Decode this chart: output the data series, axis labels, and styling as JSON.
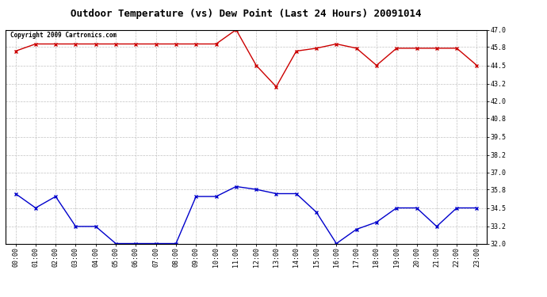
{
  "title": "Outdoor Temperature (vs) Dew Point (Last 24 Hours) 20091014",
  "copyright_text": "Copyright 2009 Cartronics.com",
  "x_labels": [
    "00:00",
    "01:00",
    "02:00",
    "03:00",
    "04:00",
    "05:00",
    "06:00",
    "07:00",
    "08:00",
    "09:00",
    "10:00",
    "11:00",
    "12:00",
    "13:00",
    "14:00",
    "15:00",
    "16:00",
    "17:00",
    "18:00",
    "19:00",
    "20:00",
    "21:00",
    "22:00",
    "23:00"
  ],
  "temp_data": [
    45.5,
    46.0,
    46.0,
    46.0,
    46.0,
    46.0,
    46.0,
    46.0,
    46.0,
    46.0,
    46.0,
    47.0,
    44.5,
    43.0,
    45.5,
    45.7,
    46.0,
    45.7,
    44.5,
    45.7,
    45.7,
    45.7,
    45.7,
    44.5
  ],
  "dew_data": [
    35.5,
    34.5,
    35.3,
    33.2,
    33.2,
    32.0,
    32.0,
    32.0,
    32.0,
    35.3,
    35.3,
    36.0,
    35.8,
    35.5,
    35.5,
    34.2,
    32.0,
    33.0,
    33.5,
    34.5,
    34.5,
    33.2,
    34.5,
    34.5
  ],
  "temp_color": "#cc0000",
  "dew_color": "#0000cc",
  "bg_color": "#ffffff",
  "grid_color": "#bbbbbb",
  "ylim_min": 32.0,
  "ylim_max": 47.0,
  "yticks": [
    32.0,
    33.2,
    34.5,
    35.8,
    37.0,
    38.2,
    39.5,
    40.8,
    42.0,
    43.2,
    44.5,
    45.8,
    47.0
  ],
  "marker": "x",
  "markersize": 3,
  "markeredgewidth": 1.0,
  "linewidth": 1.0,
  "title_fontsize": 9,
  "tick_fontsize": 6,
  "copyright_fontsize": 5.5
}
